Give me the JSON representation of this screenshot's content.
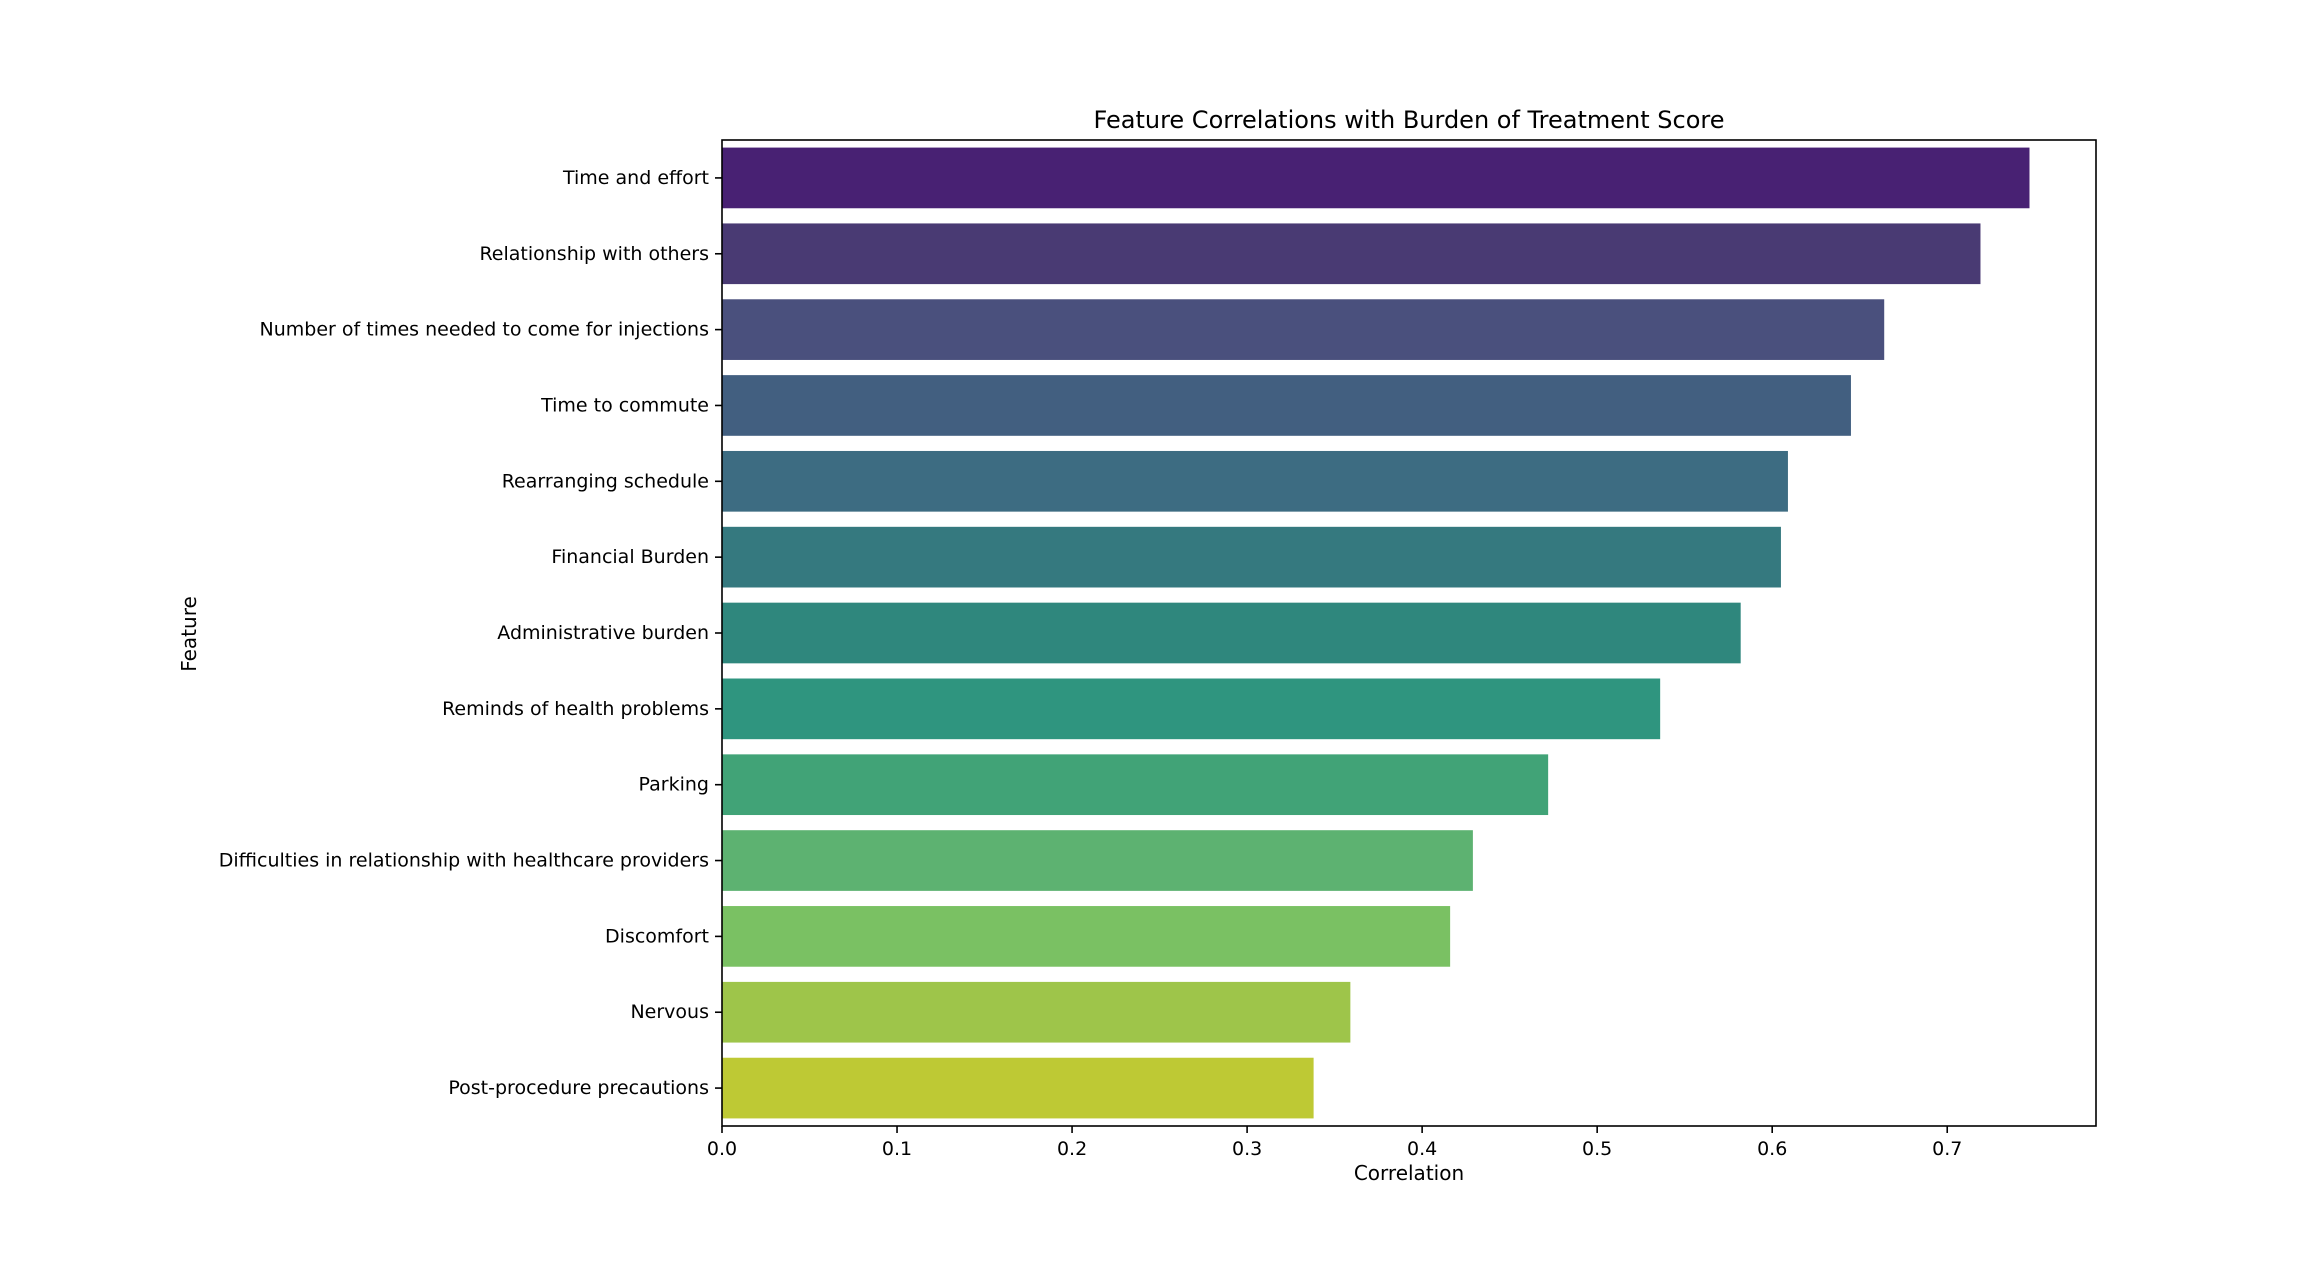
{
  "chart_data": {
    "type": "bar",
    "orientation": "horizontal",
    "title": "Feature Correlations with Burden of Treatment Score",
    "xlabel": "Correlation",
    "ylabel": "Feature",
    "xlim": [
      0,
      0.785
    ],
    "xticks": [
      "0.0",
      "0.1",
      "0.2",
      "0.3",
      "0.4",
      "0.5",
      "0.6",
      "0.7"
    ],
    "grid": false,
    "legend": "none",
    "categories": [
      "Time and effort",
      "Relationship with others",
      "Number of times needed to come for injections",
      "Time to commute",
      "Rearranging schedule",
      "Financial Burden",
      "Administrative burden",
      "Reminds of health problems",
      "Parking",
      "Difficulties in relationship with healthcare providers",
      "Discomfort",
      "Nervous",
      "Post-procedure precautions"
    ],
    "values": [
      0.747,
      0.719,
      0.664,
      0.645,
      0.609,
      0.605,
      0.582,
      0.536,
      0.472,
      0.429,
      0.416,
      0.359,
      0.338
    ],
    "colors": [
      "#482173",
      "#493a73",
      "#4a507d",
      "#425f80",
      "#3d6c82",
      "#35797f",
      "#2f877d",
      "#2f957f",
      "#41a377",
      "#5db271",
      "#7ac163",
      "#9ec54a",
      "#bec934"
    ]
  }
}
